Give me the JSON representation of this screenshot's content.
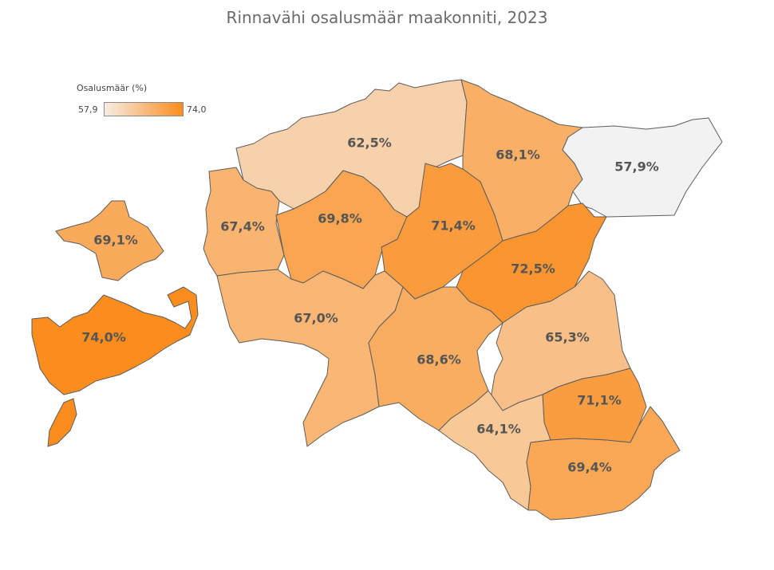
{
  "title": "Rinnavähi osalusmäär maakonniti, 2023",
  "legend": {
    "title": "Osalusmäär (%)",
    "min_label": "57,9",
    "max_label": "74,0",
    "min_value": 57.9,
    "max_value": 74.0,
    "color_low": "#f6ede3",
    "color_high": "#fb8c1e"
  },
  "no_data_color": "#f2f2f2",
  "regions": [
    {
      "name": "Harju",
      "value": 62.5,
      "label": "62,5%"
    },
    {
      "name": "Lääne-Viru",
      "value": 68.1,
      "label": "68,1%"
    },
    {
      "name": "Ida-Viru",
      "value": 57.9,
      "label": "57,9%"
    },
    {
      "name": "Hiiu",
      "value": 69.1,
      "label": "69,1%"
    },
    {
      "name": "Lääne",
      "value": 67.4,
      "label": "67,4%"
    },
    {
      "name": "Rapla",
      "value": 69.8,
      "label": "69,8%"
    },
    {
      "name": "Järva",
      "value": 71.4,
      "label": "71,4%"
    },
    {
      "name": "Jõgeva",
      "value": 72.5,
      "label": "72,5%"
    },
    {
      "name": "Saare",
      "value": 74.0,
      "label": "74,0%"
    },
    {
      "name": "Pärnu",
      "value": 67.0,
      "label": "67,0%"
    },
    {
      "name": "Viljandi",
      "value": 68.6,
      "label": "68,6%"
    },
    {
      "name": "Tartu",
      "value": 65.3,
      "label": "65,3%"
    },
    {
      "name": "Põlva",
      "value": 71.1,
      "label": "71,1%"
    },
    {
      "name": "Valga",
      "value": 64.1,
      "label": "64,1%"
    },
    {
      "name": "Võru",
      "value": 69.4,
      "label": "69,4%"
    }
  ]
}
